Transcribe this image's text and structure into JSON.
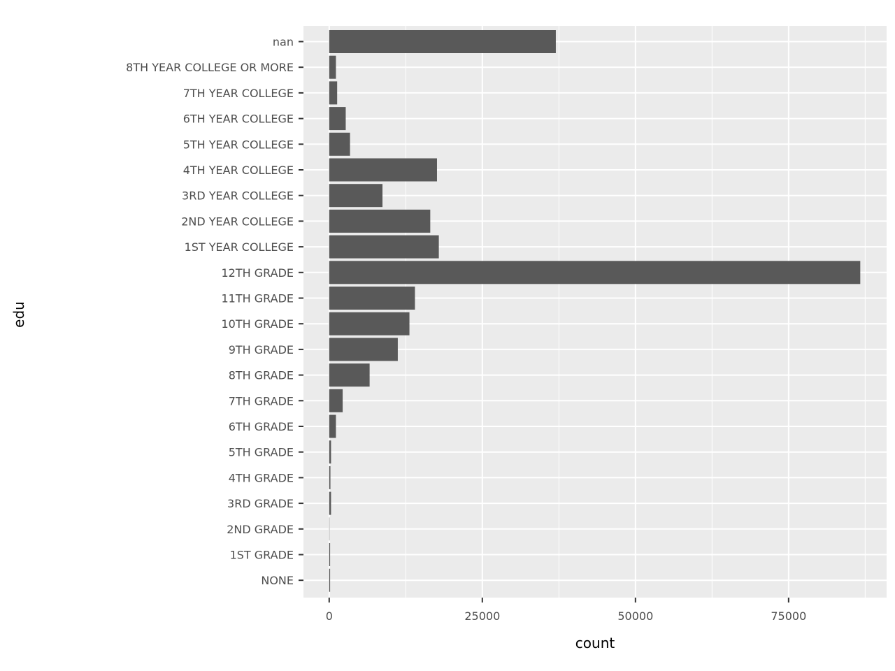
{
  "chart_data": {
    "type": "bar",
    "orientation": "horizontal",
    "xlabel": "count",
    "ylabel": "edu",
    "categories": [
      "nan",
      "8TH YEAR COLLEGE OR MORE",
      "7TH YEAR COLLEGE",
      "6TH YEAR COLLEGE",
      "5TH YEAR COLLEGE",
      "4TH YEAR COLLEGE",
      "3RD YEAR COLLEGE",
      "2ND YEAR COLLEGE",
      "1ST YEAR COLLEGE",
      "12TH GRADE",
      "11TH GRADE",
      "10TH GRADE",
      "9TH GRADE",
      "8TH GRADE",
      "7TH GRADE",
      "6TH GRADE",
      "5TH GRADE",
      "4TH GRADE",
      "3RD GRADE",
      "2ND GRADE",
      "1ST GRADE",
      "NONE"
    ],
    "values": [
      37000,
      1100,
      1300,
      2700,
      3400,
      17600,
      8700,
      16500,
      17900,
      86700,
      14000,
      13100,
      11200,
      6600,
      2200,
      1100,
      300,
      200,
      300,
      50,
      150,
      150
    ],
    "xlim": [
      -4200,
      91000
    ],
    "xticks": [
      0,
      25000,
      50000,
      75000
    ],
    "xtick_labels": [
      "0",
      "25000",
      "50000",
      "75000"
    ],
    "xminor": [
      12500,
      37500,
      62500,
      87500
    ],
    "grid": true,
    "colors": {
      "panel": "#ebebeb",
      "bar": "#595959",
      "grid": "#ffffff",
      "tick": "#333333"
    }
  }
}
